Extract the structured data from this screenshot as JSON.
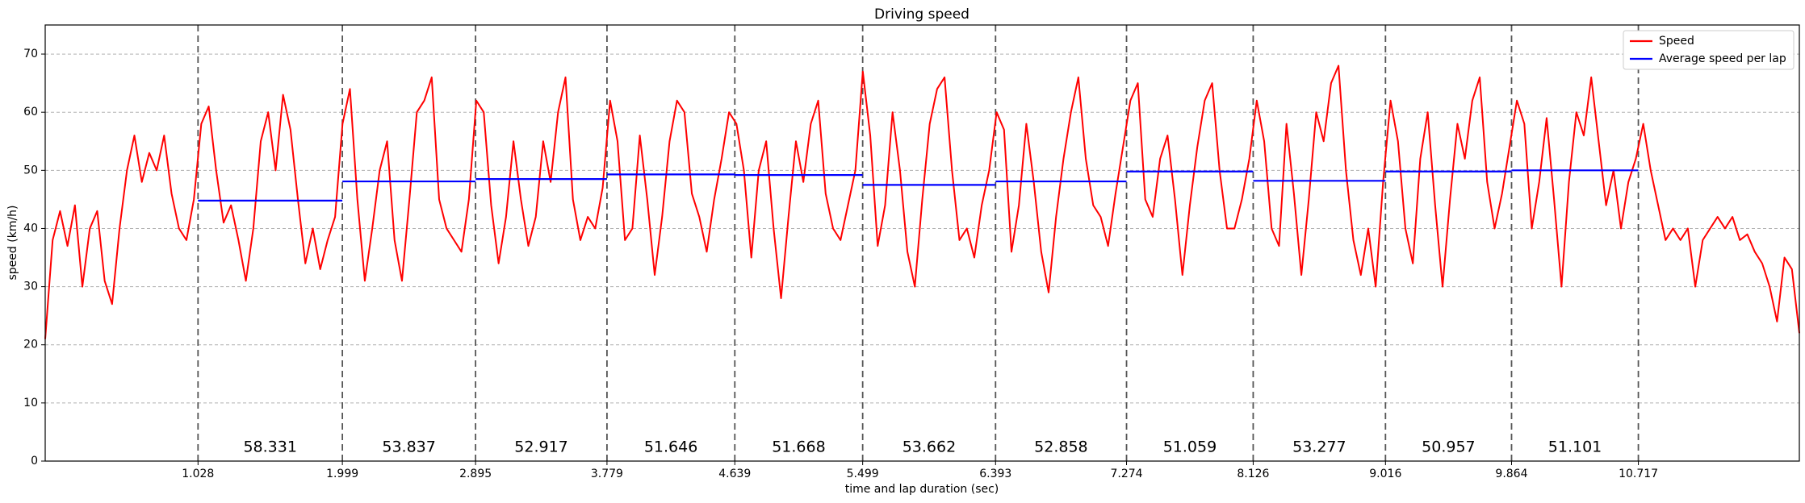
{
  "chart_data": {
    "type": "line",
    "title": "Driving speed",
    "x_label": "time and lap duration (sec)",
    "y_label": "speed (km/h)",
    "xlim": [
      0,
      11.8
    ],
    "ylim": [
      0,
      75
    ],
    "xticks": [
      1.028,
      1.999,
      2.895,
      3.779,
      4.639,
      5.499,
      6.393,
      7.274,
      8.126,
      9.016,
      9.864,
      10.717
    ],
    "yticks": [
      0,
      10,
      20,
      30,
      40,
      50,
      60,
      70
    ],
    "grid": true,
    "lap_lines": true,
    "legend": "upper right",
    "lap_durations": [
      58.331,
      53.837,
      52.917,
      51.646,
      51.668,
      53.662,
      52.858,
      51.059,
      53.277,
      50.957,
      51.101
    ],
    "series": [
      {
        "name": "Speed",
        "color": "#ff0000",
        "x": [
          0,
          0.05,
          0.1,
          0.15,
          0.2,
          0.25,
          0.3,
          0.35,
          0.4,
          0.45,
          0.5,
          0.55,
          0.6,
          0.65,
          0.7,
          0.75,
          0.8,
          0.85,
          0.9,
          0.95,
          1,
          1.05,
          1.1,
          1.15,
          1.2,
          1.25,
          1.3,
          1.35,
          1.4,
          1.45,
          1.5,
          1.55,
          1.6,
          1.65,
          1.7,
          1.75,
          1.8,
          1.85,
          1.9,
          1.95,
          2,
          2.05,
          2.1,
          2.15,
          2.2,
          2.25,
          2.3,
          2.35,
          2.4,
          2.45,
          2.5,
          2.55,
          2.6,
          2.65,
          2.7,
          2.75,
          2.8,
          2.85,
          2.9,
          2.95,
          3,
          3.05,
          3.1,
          3.15,
          3.2,
          3.25,
          3.3,
          3.35,
          3.4,
          3.45,
          3.5,
          3.55,
          3.6,
          3.65,
          3.7,
          3.75,
          3.8,
          3.85,
          3.9,
          3.95,
          4,
          4.05,
          4.1,
          4.15,
          4.2,
          4.25,
          4.3,
          4.35,
          4.4,
          4.45,
          4.5,
          4.55,
          4.6,
          4.65,
          4.7,
          4.75,
          4.8,
          4.85,
          4.9,
          4.95,
          5,
          5.05,
          5.1,
          5.15,
          5.2,
          5.25,
          5.3,
          5.35,
          5.4,
          5.45,
          5.5,
          5.55,
          5.6,
          5.65,
          5.7,
          5.75,
          5.8,
          5.85,
          5.9,
          5.95,
          6,
          6.05,
          6.1,
          6.15,
          6.2,
          6.25,
          6.3,
          6.35,
          6.4,
          6.45,
          6.5,
          6.55,
          6.6,
          6.65,
          6.7,
          6.75,
          6.8,
          6.85,
          6.9,
          6.95,
          7,
          7.05,
          7.1,
          7.15,
          7.2,
          7.25,
          7.3,
          7.35,
          7.4,
          7.45,
          7.5,
          7.55,
          7.6,
          7.65,
          7.7,
          7.75,
          7.8,
          7.85,
          7.9,
          7.95,
          8,
          8.05,
          8.1,
          8.15,
          8.2,
          8.25,
          8.3,
          8.35,
          8.4,
          8.45,
          8.5,
          8.55,
          8.6,
          8.65,
          8.7,
          8.75,
          8.8,
          8.85,
          8.9,
          8.95,
          9,
          9.05,
          9.1,
          9.15,
          9.2,
          9.25,
          9.3,
          9.35,
          9.4,
          9.45,
          9.5,
          9.55,
          9.6,
          9.65,
          9.7,
          9.75,
          9.8,
          9.85,
          9.9,
          9.95,
          10,
          10.05,
          10.1,
          10.15,
          10.2,
          10.25,
          10.3,
          10.35,
          10.4,
          10.45,
          10.5,
          10.55,
          10.6,
          10.65,
          10.7,
          10.75,
          10.8,
          10.85,
          10.9,
          10.95,
          11,
          11.05,
          11.1,
          11.15,
          11.2,
          11.25,
          11.3,
          11.35,
          11.4,
          11.45,
          11.5,
          11.55,
          11.6,
          11.65,
          11.7,
          11.75,
          11.8
        ],
        "values": [
          21,
          38,
          43,
          37,
          44,
          30,
          40,
          43,
          31,
          27,
          40,
          50,
          56,
          48,
          53,
          50,
          56,
          46,
          40,
          38,
          45,
          58,
          61,
          50,
          41,
          44,
          38,
          31,
          40,
          55,
          60,
          50,
          63,
          57,
          45,
          34,
          40,
          33,
          38,
          42,
          58,
          64,
          45,
          31,
          40,
          50,
          55,
          38,
          31,
          45,
          60,
          62,
          66,
          45,
          40,
          38,
          36,
          45,
          62,
          60,
          44,
          34,
          42,
          55,
          45,
          37,
          42,
          55,
          48,
          60,
          66,
          45,
          38,
          42,
          40,
          47,
          62,
          55,
          38,
          40,
          56,
          45,
          32,
          42,
          55,
          62,
          60,
          46,
          42,
          36,
          45,
          52,
          60,
          58,
          50,
          35,
          50,
          55,
          40,
          28,
          42,
          55,
          48,
          58,
          62,
          46,
          40,
          38,
          44,
          50,
          67,
          56,
          37,
          44,
          60,
          50,
          36,
          30,
          45,
          58,
          64,
          66,
          50,
          38,
          40,
          35,
          44,
          50,
          60,
          57,
          36,
          44,
          58,
          48,
          36,
          29,
          42,
          52,
          60,
          66,
          52,
          44,
          42,
          37,
          46,
          54,
          62,
          65,
          45,
          42,
          52,
          56,
          45,
          32,
          44,
          54,
          62,
          65,
          50,
          40,
          40,
          45,
          52,
          62,
          55,
          40,
          37,
          58,
          46,
          32,
          45,
          60,
          55,
          65,
          68,
          50,
          38,
          32,
          40,
          30,
          48,
          62,
          55,
          40,
          34,
          52,
          60,
          44,
          30,
          45,
          58,
          52,
          62,
          66,
          48,
          40,
          46,
          54,
          62,
          58,
          40,
          48,
          59,
          45,
          30,
          48,
          60,
          56,
          66,
          55,
          44,
          50,
          40,
          48,
          52,
          58,
          50,
          44,
          38,
          40,
          38,
          40,
          30,
          38,
          40,
          42,
          40,
          42,
          38,
          39,
          36,
          34,
          30,
          24,
          35,
          33,
          22
        ]
      },
      {
        "name": "Average speed per lap",
        "color": "#0000ff",
        "values": [
          44.8,
          48.1,
          48.5,
          49.3,
          49.2,
          47.5,
          48.1,
          49.8,
          48.2,
          49.8,
          50.0
        ]
      }
    ]
  }
}
